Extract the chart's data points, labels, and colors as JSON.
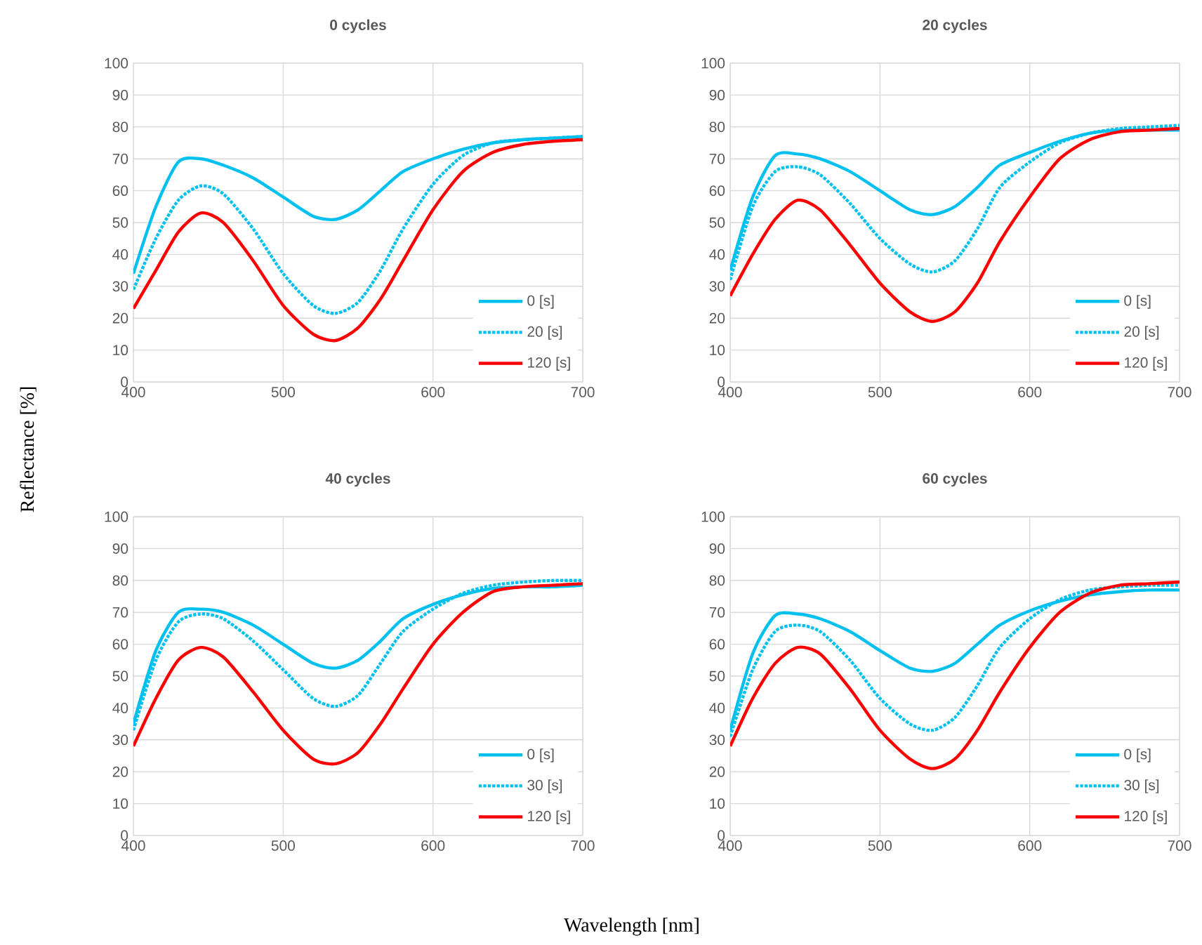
{
  "chart_data": [
    {
      "type": "line",
      "title": "0 cycles",
      "ylabel": "Reflectance [%]",
      "xlim": [
        400,
        700
      ],
      "ylim": [
        0,
        100
      ],
      "xticks": [
        400,
        500,
        600,
        700
      ],
      "yticks": [
        0,
        10,
        20,
        30,
        40,
        50,
        60,
        70,
        80,
        90,
        100
      ],
      "grid": true,
      "legend": "bottom right",
      "x": [
        400,
        415,
        430,
        445,
        460,
        480,
        500,
        520,
        535,
        550,
        565,
        580,
        600,
        620,
        640,
        660,
        680,
        700
      ],
      "series": [
        {
          "name": "0 [s]",
          "color": "#00c0ef",
          "line_style": "solid",
          "values": [
            34,
            55,
            69,
            70,
            68,
            64,
            58,
            52,
            51,
            54,
            60,
            66,
            70,
            73,
            75,
            76,
            76.5,
            77
          ]
        },
        {
          "name": "20 [s]",
          "color": "#00c0ef",
          "line_style": "dotted",
          "values": [
            29,
            45,
            57,
            61.5,
            59,
            48,
            34,
            24,
            21.5,
            25,
            35,
            48,
            62,
            71,
            75,
            76,
            76.5,
            77
          ]
        },
        {
          "name": "120 [s]",
          "color": "#ff0000",
          "line_style": "solid",
          "values": [
            23,
            35,
            47,
            53,
            50,
            38,
            24,
            15,
            13,
            17,
            26,
            38,
            54,
            66,
            72,
            74.5,
            75.5,
            76
          ]
        }
      ]
    },
    {
      "type": "line",
      "title": "20 cycles",
      "xlim": [
        400,
        700
      ],
      "ylim": [
        0,
        100
      ],
      "xticks": [
        400,
        500,
        600,
        700
      ],
      "yticks": [
        0,
        10,
        20,
        30,
        40,
        50,
        60,
        70,
        80,
        90,
        100
      ],
      "grid": true,
      "legend": "bottom right",
      "x": [
        400,
        415,
        430,
        445,
        460,
        480,
        500,
        520,
        535,
        550,
        565,
        580,
        600,
        620,
        640,
        660,
        680,
        700
      ],
      "series": [
        {
          "name": "0 [s]",
          "color": "#00c0ef",
          "line_style": "solid",
          "values": [
            35,
            58,
            71,
            71.5,
            70,
            66,
            60,
            54,
            52.5,
            55,
            61,
            68,
            72,
            75.5,
            78,
            79,
            79,
            79
          ]
        },
        {
          "name": "20 [s]",
          "color": "#00c0ef",
          "line_style": "dotted",
          "values": [
            32,
            55,
            66,
            67.5,
            65,
            56,
            45,
            37,
            34.5,
            38,
            48,
            61,
            69,
            75,
            78,
            79.5,
            80,
            80.5
          ]
        },
        {
          "name": "120 [s]",
          "color": "#ff0000",
          "line_style": "solid",
          "values": [
            27,
            40,
            51,
            57,
            54,
            43,
            31,
            22,
            19,
            22,
            31,
            44,
            58,
            70,
            76,
            78.5,
            79,
            79.5
          ]
        }
      ]
    },
    {
      "type": "line",
      "title": "40 cycles",
      "xlabel": "Wavelength [nm]",
      "xlim": [
        400,
        700
      ],
      "ylim": [
        0,
        100
      ],
      "xticks": [
        400,
        500,
        600,
        700
      ],
      "yticks": [
        0,
        10,
        20,
        30,
        40,
        50,
        60,
        70,
        80,
        90,
        100
      ],
      "grid": true,
      "legend": "bottom right",
      "x": [
        400,
        415,
        430,
        445,
        460,
        480,
        500,
        520,
        535,
        550,
        565,
        580,
        600,
        620,
        640,
        660,
        680,
        700
      ],
      "series": [
        {
          "name": "0 [s]",
          "color": "#00c0ef",
          "line_style": "solid",
          "values": [
            35,
            58,
            70,
            71,
            70,
            66,
            60,
            54,
            52.5,
            55,
            61,
            68,
            72.5,
            75.5,
            77.5,
            78,
            78,
            78.5
          ]
        },
        {
          "name": "30 [s]",
          "color": "#00c0ef",
          "line_style": "dotted",
          "values": [
            33,
            55,
            67,
            69.5,
            68,
            61,
            52,
            43,
            40.5,
            44,
            54,
            64,
            71,
            76,
            78.5,
            79.5,
            80,
            80
          ]
        },
        {
          "name": "120 [s]",
          "color": "#ff0000",
          "line_style": "solid",
          "values": [
            28,
            43,
            55,
            59,
            56,
            45,
            33,
            24,
            22.5,
            26,
            35,
            46,
            60,
            70,
            76.5,
            78,
            78.5,
            79
          ]
        }
      ]
    },
    {
      "type": "line",
      "title": "60 cycles",
      "xlim": [
        400,
        700
      ],
      "ylim": [
        0,
        100
      ],
      "xticks": [
        400,
        500,
        600,
        700
      ],
      "yticks": [
        0,
        10,
        20,
        30,
        40,
        50,
        60,
        70,
        80,
        90,
        100
      ],
      "grid": true,
      "legend": "bottom right",
      "x": [
        400,
        415,
        430,
        445,
        460,
        480,
        500,
        520,
        535,
        550,
        565,
        580,
        600,
        620,
        640,
        660,
        680,
        700
      ],
      "series": [
        {
          "name": "0 [s]",
          "color": "#00c0ef",
          "line_style": "solid",
          "values": [
            33,
            57,
            69,
            69.5,
            68,
            64,
            58,
            52.5,
            51.5,
            54,
            60,
            66,
            70.5,
            73.5,
            75.5,
            76.5,
            77,
            77
          ]
        },
        {
          "name": "30 [s]",
          "color": "#00c0ef",
          "line_style": "dotted",
          "values": [
            31,
            52,
            64,
            66,
            64,
            55,
            43,
            35,
            33,
            37,
            47,
            59,
            68,
            74,
            77,
            78,
            78.5,
            78.5
          ]
        },
        {
          "name": "120 [s]",
          "color": "#ff0000",
          "line_style": "solid",
          "values": [
            28,
            43,
            54,
            59,
            57,
            46,
            33,
            24,
            21,
            24,
            33,
            45,
            59,
            70,
            76,
            78.5,
            79,
            79.5
          ]
        }
      ]
    }
  ]
}
